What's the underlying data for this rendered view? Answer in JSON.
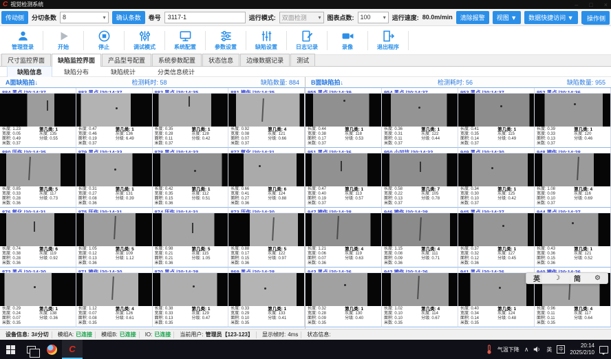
{
  "window": {
    "title": "视觉检测系统",
    "minimize": "–",
    "maximize": "□",
    "close": "×"
  },
  "toolbar1": {
    "drive_side": "传动侧",
    "slit_count_label": "分切条数",
    "slit_count_value": "8",
    "confirm_button": "确认条数",
    "roll_label": "卷号",
    "roll_value": "3117-1",
    "run_mode_label": "运行模式:",
    "run_mode_value": "双面检测",
    "chart_points_label": "图表点数:",
    "chart_points_value": "100",
    "speed_label": "运行速度:",
    "speed_value": "80.0m/min",
    "clear_alarm": "清除报警",
    "view_menu": "视图 ▼",
    "data_access_menu": "数据快捷访问 ▼",
    "help_menu": "帮助 ▼",
    "operate_side": "操作侧"
  },
  "toolbar2": {
    "buttons": [
      {
        "label": "管理登录",
        "icon": "user"
      },
      {
        "label": "开始",
        "icon": "play"
      },
      {
        "label": "停止",
        "icon": "stop"
      },
      {
        "label": "调试模式",
        "icon": "tune"
      },
      {
        "label": "系统配置",
        "icon": "monitor"
      },
      {
        "label": "参数设置",
        "icon": "sliders-h"
      },
      {
        "label": "缺陷设置",
        "icon": "sliders-v"
      },
      {
        "label": "日志记录",
        "icon": "log"
      },
      {
        "label": "录像",
        "icon": "camera"
      },
      {
        "label": "退出程序",
        "icon": "exit"
      }
    ]
  },
  "tabs": {
    "items": [
      "尺寸监控界面",
      "缺陷监控界面",
      "产品型号配置",
      "系统参数配置",
      "状态信息",
      "边缘数据记录",
      "测试"
    ],
    "active": 1
  },
  "subtabs": {
    "items": [
      "缺陷信息",
      "缺陷分布",
      "缺陷统计",
      "分类信息统计"
    ],
    "active": 0
  },
  "cell_labels": {
    "length": "长度:",
    "width": "宽度:",
    "area": "面积:",
    "meter": "米数:",
    "cls": "第几类:",
    "gray": "灰度:",
    "grade": "分级:"
  },
  "panels": [
    {
      "title": "A面缺陷拍↓",
      "time_label": "检测耗时:",
      "time_value": "58",
      "count_label": "缺陷数量:",
      "count_value": "884",
      "cells": [
        {
          "id": "884",
          "type": "黑点",
          "time": "20:14:37",
          "len": "1.23",
          "wid": "0.05",
          "area": "0.49",
          "meter": "0.37",
          "cls": "1",
          "gray": "135",
          "grade": "0.55",
          "img": {
            "lb": 36,
            "rb": 28,
            "g": "#9c9c9c",
            "mark": "streak",
            "mx": 62,
            "my": 20
          }
        },
        {
          "id": "883",
          "type": "黑点",
          "time": "20:14:37",
          "len": "0.47",
          "wid": "0.46",
          "area": "0.19",
          "meter": "0.37",
          "cls": "1",
          "gray": "136",
          "grade": "6.49",
          "img": {
            "lb": 6,
            "rb": 28,
            "g": "#b3b3b3",
            "mark": "dot",
            "mx": 52,
            "my": 42
          }
        },
        {
          "id": "882",
          "type": "黑点",
          "time": "20:14:35",
          "len": "0.35",
          "wid": "0.28",
          "area": "0.11",
          "meter": "0.37",
          "cls": "1",
          "gray": "128",
          "grade": "0.42",
          "img": {
            "lb": 8,
            "rb": 22,
            "g": "#a9a9a9",
            "mark": "streak",
            "mx": 48,
            "my": 8
          }
        },
        {
          "id": "881",
          "type": "擦伤",
          "time": "20:14:35",
          "len": "0.92",
          "wid": "0.08",
          "area": "0.07",
          "meter": "0.37",
          "cls": "4",
          "gray": "121",
          "grade": "0.66",
          "img": {
            "lb": 10,
            "rb": 6,
            "g": "#b0b0b0",
            "mark": "scratch",
            "mx": 44,
            "my": 15
          }
        },
        {
          "id": "880",
          "type": "压伤",
          "time": "20:14:35",
          "len": "0.85",
          "wid": "0.33",
          "area": "0.28",
          "meter": "0.36",
          "cls": "5",
          "gray": "117",
          "grade": "0.73",
          "img": {
            "lb": 8,
            "rb": 20,
            "g": "#a0a0a0",
            "mark": "scratch",
            "mx": 38,
            "my": 10
          }
        },
        {
          "id": "879",
          "type": "黑点",
          "time": "20:14:33",
          "len": "0.31",
          "wid": "0.27",
          "area": "0.08",
          "meter": "0.36",
          "cls": "1",
          "gray": "131",
          "grade": "0.39",
          "img": {
            "lb": 12,
            "rb": 26,
            "g": "#ababab",
            "mark": "dot",
            "mx": 50,
            "my": 45
          }
        },
        {
          "id": "878",
          "type": "黑点",
          "time": "20:14:32",
          "len": "0.42",
          "wid": "0.35",
          "area": "0.15",
          "meter": "0.36",
          "cls": "1",
          "gray": "112",
          "grade": "0.51",
          "img": {
            "lb": 10,
            "rb": 8,
            "g": "#8f8f8f",
            "mark": "dot",
            "mx": 55,
            "my": 50
          }
        },
        {
          "id": "877",
          "type": "氧化",
          "time": "20:14:31",
          "len": "0.66",
          "wid": "0.41",
          "area": "0.27",
          "meter": "0.36",
          "cls": "6",
          "gray": "124",
          "grade": "0.88",
          "img": {
            "lb": 20,
            "rb": 10,
            "g": "#aaaaaa",
            "mark": "dot",
            "mx": 40,
            "my": 35
          }
        },
        {
          "id": "876",
          "type": "氧化",
          "time": "20:14:31",
          "len": "0.74",
          "wid": "0.38",
          "area": "0.28",
          "meter": "0.36",
          "cls": "6",
          "gray": "119",
          "grade": "0.92",
          "img": {
            "lb": 8,
            "rb": 28,
            "g": "#a6a6a6",
            "mark": "streak",
            "mx": 45,
            "my": 25
          }
        },
        {
          "id": "875",
          "type": "压伤",
          "time": "20:14:31",
          "len": "1.05",
          "wid": "0.12",
          "area": "0.13",
          "meter": "0.36",
          "cls": "5",
          "gray": "109",
          "grade": "1.12",
          "img": {
            "lb": 10,
            "rb": 22,
            "g": "#9d9d9d",
            "mark": "scratch",
            "mx": 50,
            "my": 8
          }
        },
        {
          "id": "874",
          "type": "压伤",
          "time": "20:14:31",
          "len": "0.98",
          "wid": "0.21",
          "area": "0.21",
          "meter": "0.36",
          "cls": "5",
          "gray": "115",
          "grade": "1.05",
          "img": {
            "lb": 12,
            "rb": 18,
            "g": "#a4a4a4",
            "mark": "streak",
            "mx": 52,
            "my": 30
          }
        },
        {
          "id": "873",
          "type": "压伤",
          "time": "20:14:30",
          "len": "0.88",
          "wid": "0.17",
          "area": "0.15",
          "meter": "0.36",
          "cls": "5",
          "gray": "122",
          "grade": "0.97",
          "img": {
            "lb": 28,
            "rb": 8,
            "g": "#adadad",
            "mark": "scratch",
            "mx": 58,
            "my": 12
          }
        },
        {
          "id": "872",
          "type": "黑点",
          "time": "20:14:30",
          "len": "0.29",
          "wid": "0.24",
          "area": "0.07",
          "meter": "0.35",
          "cls": "1",
          "gray": "138",
          "grade": "0.36",
          "img": {
            "lb": 6,
            "rb": 32,
            "g": "#b6b6b6",
            "mark": "dot",
            "mx": 45,
            "my": 40
          }
        },
        {
          "id": "871",
          "type": "擦伤",
          "time": "20:14:30",
          "len": "1.12",
          "wid": "0.07",
          "area": "0.08",
          "meter": "0.35",
          "cls": "4",
          "gray": "126",
          "grade": "0.61",
          "img": {
            "lb": 8,
            "rb": 18,
            "g": "#b1b1b1",
            "mark": "scratch",
            "mx": 48,
            "my": 10
          }
        },
        {
          "id": "870",
          "type": "黑点",
          "time": "20:14:28",
          "len": "0.38",
          "wid": "0.33",
          "area": "0.13",
          "meter": "0.35",
          "cls": "1",
          "gray": "129",
          "grade": "0.47",
          "img": {
            "lb": 10,
            "rb": 14,
            "g": "#aeaeae",
            "mark": "dot",
            "mx": 53,
            "my": 38
          }
        },
        {
          "id": "869",
          "type": "黑点",
          "time": "20:14:28",
          "len": "0.33",
          "wid": "0.29",
          "area": "0.10",
          "meter": "0.35",
          "cls": "1",
          "gray": "133",
          "grade": "0.41",
          "img": {
            "lb": 16,
            "rb": 10,
            "g": "#b4b4b4",
            "mark": "dot",
            "mx": 47,
            "my": 44
          }
        }
      ]
    },
    {
      "title": "B面缺陷拍↓",
      "time_label": "检测耗时:",
      "time_value": "56",
      "count_label": "缺陷数量:",
      "count_value": "955",
      "cells": [
        {
          "id": "955",
          "type": "黑点",
          "time": "20:14:39",
          "len": "0.44",
          "wid": "0.38",
          "area": "0.17",
          "meter": "0.37",
          "cls": "1",
          "gray": "118",
          "grade": "0.53",
          "img": {
            "lb": 10,
            "rb": 16,
            "g": "#909090",
            "mark": "dot",
            "mx": 50,
            "my": 18
          }
        },
        {
          "id": "954",
          "type": "黑点",
          "time": "20:14:37",
          "len": "0.36",
          "wid": "0.31",
          "area": "0.11",
          "meter": "0.37",
          "cls": "1",
          "gray": "122",
          "grade": "0.44",
          "img": {
            "lb": 12,
            "rb": 14,
            "g": "#949494",
            "mark": "dot",
            "mx": 48,
            "my": 40
          }
        },
        {
          "id": "953",
          "type": "黑点",
          "time": "20:14:37",
          "len": "0.41",
          "wid": "0.35",
          "area": "0.14",
          "meter": "0.37",
          "cls": "1",
          "gray": "115",
          "grade": "0.49",
          "img": {
            "lb": 22,
            "rb": 6,
            "g": "#8c8c8c",
            "mark": "dot",
            "mx": 55,
            "my": 35
          }
        },
        {
          "id": "952",
          "type": "黑点",
          "time": "20:14:36",
          "len": "0.39",
          "wid": "0.33",
          "area": "0.13",
          "meter": "0.37",
          "cls": "1",
          "gray": "120",
          "grade": "0.46",
          "img": {
            "lb": 13,
            "rb": 10,
            "g": "#989898",
            "mark": "dot",
            "mx": 52,
            "my": 30
          }
        },
        {
          "id": "951",
          "type": "黑点",
          "time": "20:14:36",
          "len": "0.47",
          "wid": "0.40",
          "area": "0.19",
          "meter": "0.37",
          "cls": "1",
          "gray": "113",
          "grade": "0.57",
          "img": {
            "lb": 8,
            "rb": 18,
            "g": "#919191",
            "mark": "streak",
            "mx": 46,
            "my": 22
          }
        },
        {
          "id": "950",
          "type": "小凹坑",
          "time": "20:14:32",
          "len": "0.58",
          "wid": "0.22",
          "area": "0.13",
          "meter": "0.37",
          "cls": "7",
          "gray": "105",
          "grade": "0.78",
          "img": {
            "lb": 10,
            "rb": 14,
            "g": "#8d8d8d",
            "mark": "streak",
            "mx": 50,
            "my": 25
          }
        },
        {
          "id": "949",
          "type": "黑点",
          "time": "20:14:30",
          "len": "0.34",
          "wid": "0.30",
          "area": "0.10",
          "meter": "0.37",
          "cls": "1",
          "gray": "125",
          "grade": "0.42",
          "img": {
            "lb": 18,
            "rb": 8,
            "g": "#959595",
            "mark": "dot",
            "mx": 44,
            "my": 42
          }
        },
        {
          "id": "948",
          "type": "擦伤",
          "time": "20:14:28",
          "len": "1.08",
          "wid": "0.09",
          "area": "0.10",
          "meter": "0.37",
          "cls": "4",
          "gray": "116",
          "grade": "0.69",
          "img": {
            "lb": 10,
            "rb": 22,
            "g": "#9b9b9b",
            "mark": "scratch",
            "mx": 56,
            "my": 10
          }
        },
        {
          "id": "947",
          "type": "擦伤",
          "time": "20:14:28",
          "len": "1.21",
          "wid": "0.06",
          "area": "0.07",
          "meter": "0.36",
          "cls": "4",
          "gray": "119",
          "grade": "0.63",
          "img": {
            "lb": 8,
            "rb": 14,
            "g": "#8f8f8f",
            "mark": "scratch",
            "mx": 42,
            "my": 8
          }
        },
        {
          "id": "946",
          "type": "擦伤",
          "time": "20:14:28",
          "len": "1.15",
          "wid": "0.08",
          "area": "0.09",
          "meter": "0.36",
          "cls": "4",
          "gray": "111",
          "grade": "0.71",
          "img": {
            "lb": 13,
            "rb": 10,
            "g": "#8b8b8b",
            "mark": "scratch",
            "mx": 50,
            "my": 12
          }
        },
        {
          "id": "945",
          "type": "黑点",
          "time": "20:14:27",
          "len": "0.37",
          "wid": "0.32",
          "area": "0.12",
          "meter": "0.36",
          "cls": "1",
          "gray": "127",
          "grade": "0.45",
          "img": {
            "lb": 20,
            "rb": 8,
            "g": "#969696",
            "mark": "dot",
            "mx": 58,
            "my": 36
          }
        },
        {
          "id": "944",
          "type": "黑点",
          "time": "20:14:27",
          "len": "0.43",
          "wid": "0.36",
          "area": "0.15",
          "meter": "0.36",
          "cls": "1",
          "gray": "121",
          "grade": "0.52",
          "img": {
            "lb": 10,
            "rb": 16,
            "g": "#999999",
            "mark": "dot",
            "mx": 49,
            "my": 28
          }
        },
        {
          "id": "943",
          "type": "黑点",
          "time": "20:14:26",
          "len": "0.32",
          "wid": "0.28",
          "area": "0.09",
          "meter": "0.35",
          "cls": "1",
          "gray": "130",
          "grade": "0.40",
          "img": {
            "lb": 8,
            "rb": 18,
            "g": "#a1a1a1",
            "mark": "dot",
            "mx": 51,
            "my": 33
          }
        },
        {
          "id": "942",
          "type": "擦伤",
          "time": "20:14:26",
          "len": "1.02",
          "wid": "0.10",
          "area": "0.10",
          "meter": "0.35",
          "cls": "4",
          "gray": "114",
          "grade": "0.67",
          "img": {
            "lb": 12,
            "rb": 12,
            "g": "#9a9a9a",
            "mark": "scratch",
            "mx": 47,
            "my": 9
          }
        },
        {
          "id": "941",
          "type": "黑点",
          "time": "20:14:26",
          "len": "0.40",
          "wid": "0.34",
          "area": "0.14",
          "meter": "0.35",
          "cls": "1",
          "gray": "124",
          "grade": "0.48",
          "img": {
            "lb": 16,
            "rb": 10,
            "g": "#9e9e9e",
            "mark": "dot",
            "mx": 54,
            "my": 41
          }
        },
        {
          "id": "940",
          "type": "擦伤",
          "time": "20:14:26",
          "len": "0.96",
          "wid": "0.11",
          "area": "0.11",
          "meter": "0.35",
          "cls": "4",
          "gray": "117",
          "grade": "0.64",
          "img": {
            "lb": 10,
            "rb": 14,
            "g": "#a3a3a3",
            "mark": "scratch",
            "mx": 45,
            "my": 11
          }
        }
      ]
    }
  ],
  "lang_bar": {
    "items": [
      "英",
      "☽",
      "简",
      "⚙"
    ]
  },
  "status_bar": {
    "device_label": "设备信息:",
    "device": "3#分切",
    "module_a_label": "模组A:",
    "module_a": "已连接",
    "module_b_label": "模组B:",
    "module_b": "已连接",
    "io_label": "IO:",
    "io": "已连接",
    "user_label": "当前用户:",
    "user": "管理员【123-123】",
    "frame_label": "显示帧时:",
    "frame": "4ms",
    "status_label": "状态信息:"
  },
  "taskbar": {
    "weather": "气温下降",
    "lang": "英",
    "time": "20:14",
    "date": "2025/2/10"
  },
  "colors": {
    "accent": "#2b8fe8",
    "cell_header": "#3342d6",
    "connected": "#16a34a",
    "logo_red": "#e02a1a"
  }
}
